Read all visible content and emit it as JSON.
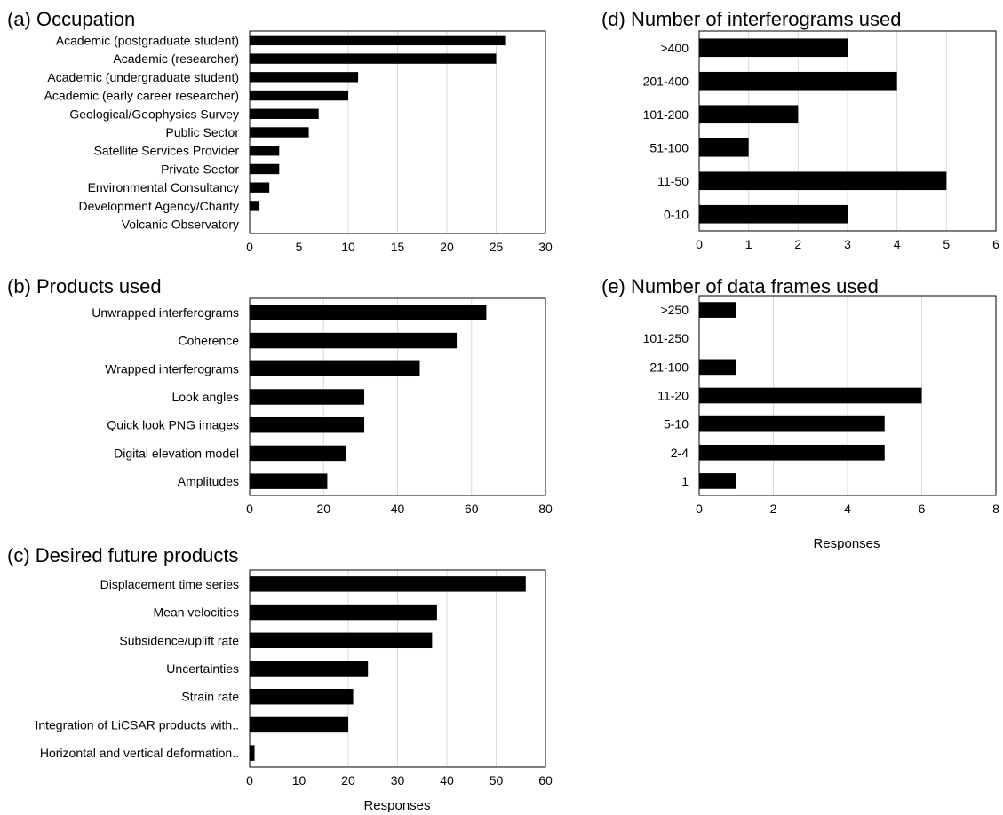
{
  "chart_data": [
    {
      "id": "a",
      "type": "bar",
      "orientation": "horizontal",
      "title": "(a) Occupation",
      "categories": [
        "Academic (postgraduate student)",
        "Academic (researcher)",
        "Academic (undergraduate student)",
        "Academic (early career researcher)",
        "Geological/Geophysics Survey",
        "Public Sector",
        "Satellite Services Provider",
        "Private Sector",
        "Environmental Consultancy",
        "Development Agency/Charity",
        "Volcanic Observatory"
      ],
      "values": [
        26,
        25,
        11,
        10,
        7,
        6,
        3,
        3,
        2,
        1,
        0
      ],
      "xlim": [
        0,
        30
      ],
      "xticks": [
        0,
        5,
        10,
        15,
        20,
        25,
        30
      ],
      "xlabel": "",
      "grid": "vertical",
      "color": "#000000"
    },
    {
      "id": "b",
      "type": "bar",
      "orientation": "horizontal",
      "title": "(b) Products used",
      "categories": [
        "Unwrapped interferograms",
        "Coherence",
        "Wrapped interferograms",
        "Look angles",
        "Quick look PNG images",
        "Digital elevation model",
        "Amplitudes"
      ],
      "values": [
        64,
        56,
        46,
        31,
        31,
        26,
        21
      ],
      "xlim": [
        0,
        80
      ],
      "xticks": [
        0,
        20,
        40,
        60,
        80
      ],
      "xlabel": "",
      "grid": "vertical",
      "color": "#000000"
    },
    {
      "id": "c",
      "type": "bar",
      "orientation": "horizontal",
      "title": "(c) Desired future products",
      "categories": [
        "Displacement time series",
        "Mean velocities",
        "Subsidence/uplift rate",
        "Uncertainties",
        "Strain rate",
        "Integration of LiCSAR products with..",
        "Horizontal and vertical deformation.."
      ],
      "values": [
        56,
        38,
        37,
        24,
        21,
        20,
        1
      ],
      "xlim": [
        0,
        60
      ],
      "xticks": [
        0,
        10,
        20,
        30,
        40,
        50,
        60
      ],
      "xlabel": "Responses",
      "grid": "vertical",
      "color": "#000000"
    },
    {
      "id": "d",
      "type": "bar",
      "orientation": "horizontal",
      "title": "(d) Number of interferograms used",
      "categories": [
        ">400",
        "201-400",
        "101-200",
        "51-100",
        "11-50",
        "0-10"
      ],
      "values": [
        3,
        4,
        2,
        1,
        5,
        3
      ],
      "xlim": [
        0,
        6
      ],
      "xticks": [
        0,
        1,
        2,
        3,
        4,
        5,
        6
      ],
      "xlabel": "",
      "grid": "vertical",
      "color": "#000000"
    },
    {
      "id": "e",
      "type": "bar",
      "orientation": "horizontal",
      "title": "(e) Number of data frames used",
      "categories": [
        ">250",
        "101-250",
        "21-100",
        "11-20",
        "5-10",
        "2-4",
        "1"
      ],
      "values": [
        1,
        0,
        1,
        6,
        5,
        5,
        1
      ],
      "xlim": [
        0,
        8
      ],
      "xticks": [
        0,
        2,
        4,
        6,
        8
      ],
      "xlabel": "Responses",
      "grid": "vertical",
      "color": "#000000"
    }
  ]
}
